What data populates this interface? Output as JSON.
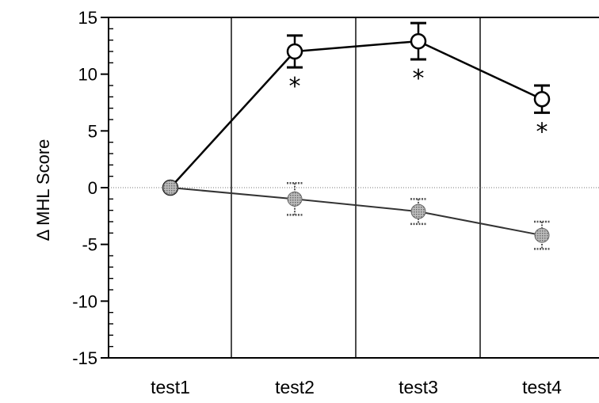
{
  "chart_data": {
    "type": "line",
    "title": "",
    "xlabel": "",
    "ylabel": "Δ MHL Score",
    "categories": [
      "test1",
      "test2",
      "test3",
      "test4"
    ],
    "ylim": [
      -15,
      15
    ],
    "yticks": [
      "15",
      "10",
      "5",
      "0",
      "-5",
      "-10",
      "-15"
    ],
    "series": [
      {
        "marker": "open-circle",
        "values": [
          0,
          12,
          12.9,
          7.8
        ],
        "errors": [
          0,
          1.4,
          1.6,
          1.2
        ],
        "significance": [
          "",
          "*",
          "*",
          "*"
        ]
      },
      {
        "marker": "filled-gray-circle",
        "values": [
          0,
          -1,
          -2.1,
          -4.2
        ],
        "errors": [
          0,
          1.4,
          1.1,
          1.2
        ],
        "significance": [
          "",
          "",
          "",
          ""
        ]
      }
    ],
    "reference_line": 0,
    "grid": "vertical separators between categories"
  }
}
